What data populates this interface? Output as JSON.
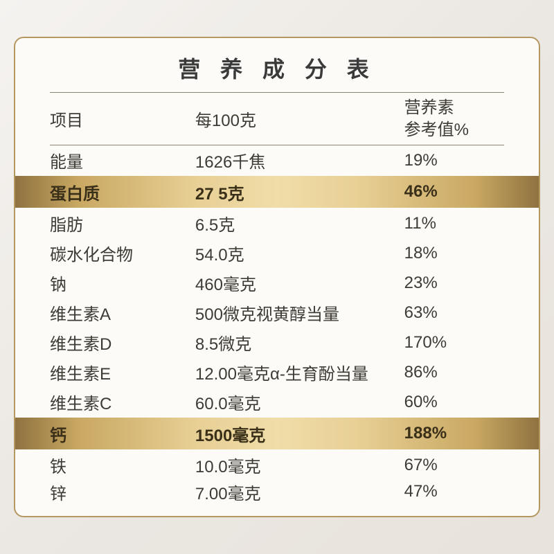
{
  "title": "营 养 成 分 表",
  "headers": {
    "col1": "项目",
    "col2": "每100克",
    "col3_line1": "营养素",
    "col3_line2": "参考值%"
  },
  "rows": [
    {
      "name": "能量",
      "amount": "1626千焦",
      "nrv": "19%",
      "highlighted": false
    },
    {
      "name": "蛋白质",
      "amount": "27 5克",
      "nrv": "46%",
      "highlighted": true
    },
    {
      "name": "脂肪",
      "amount": "6.5克",
      "nrv": "11%",
      "highlighted": false
    },
    {
      "name": "碳水化合物",
      "amount": "54.0克",
      "nrv": "18%",
      "highlighted": false
    },
    {
      "name": "钠",
      "amount": "460毫克",
      "nrv": "23%",
      "highlighted": false
    },
    {
      "name": "维生素A",
      "amount": "500微克视黄醇当量",
      "nrv": "63%",
      "highlighted": false
    },
    {
      "name": "维生素D",
      "amount": "8.5微克",
      "nrv": "170%",
      "highlighted": false
    },
    {
      "name": "维生素E",
      "amount": "12.00毫克α-生育酚当量",
      "nrv": "86%",
      "highlighted": false
    },
    {
      "name": "维生素C",
      "amount": "60.0毫克",
      "nrv": "60%",
      "highlighted": false
    },
    {
      "name": "钙",
      "amount": "1500毫克",
      "nrv": "188%",
      "highlighted": true
    },
    {
      "name": "铁",
      "amount": "10.0毫克",
      "nrv": "67%",
      "highlighted": false
    },
    {
      "name": "锌",
      "amount": "7.00毫克",
      "nrv": "47%",
      "highlighted": false
    }
  ],
  "styling": {
    "container_bg": "#fdfbf7",
    "border_color": "#b59760",
    "text_color": "#3e3b35",
    "divider_color": "#8a8172",
    "highlight_gradient": [
      "#8f7240",
      "#c9a862",
      "#e8d096",
      "#f0dda8"
    ],
    "body_bg_gradient": [
      "#f5f3f0",
      "#ebe7e2",
      "#e8e3dc"
    ],
    "title_fontsize": 32,
    "row_fontsize": 24,
    "border_radius": 14
  }
}
